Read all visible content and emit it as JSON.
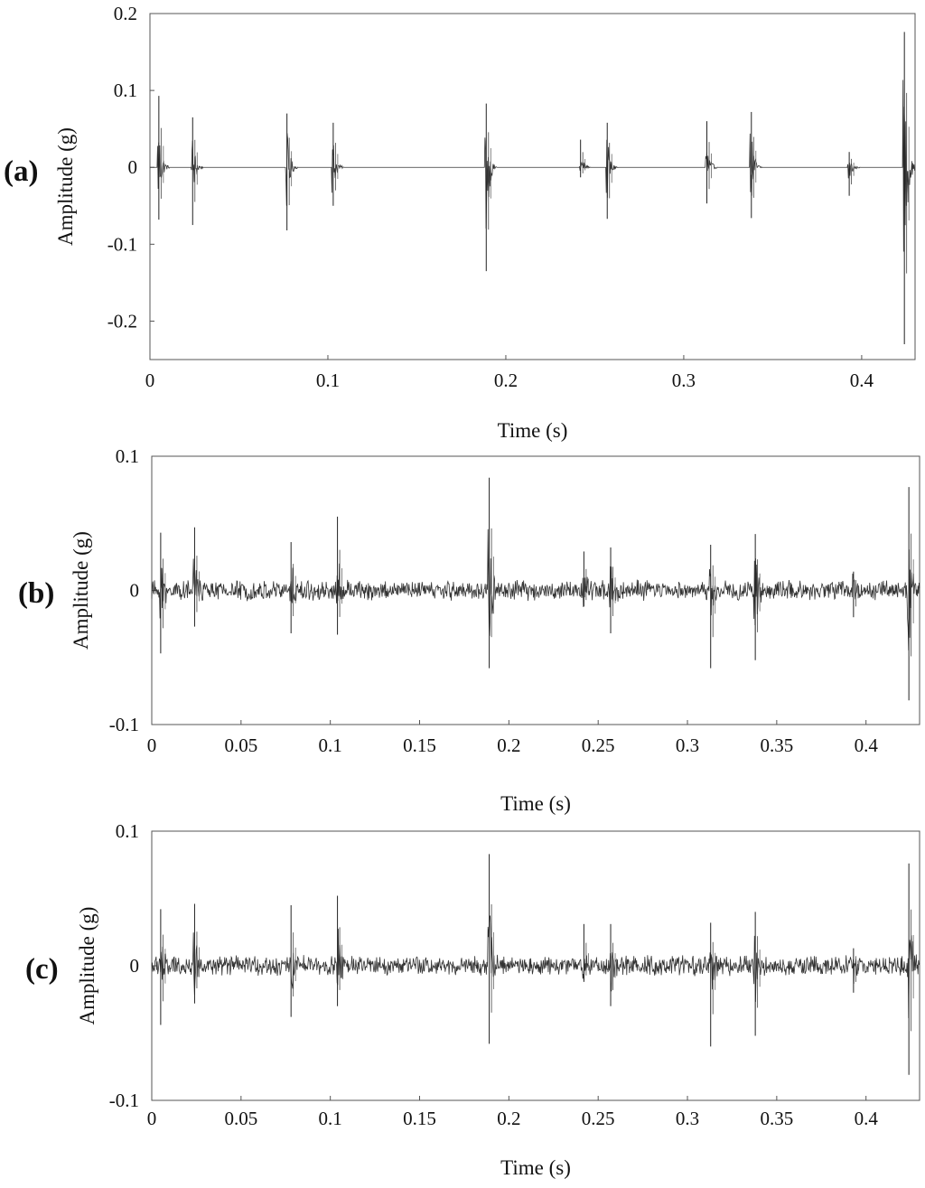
{
  "chart_data": [
    {
      "type": "line",
      "panel_label": "(a)",
      "xlabel": "Time (s)",
      "ylabel": "Amplitude (g)",
      "xlim": [
        0,
        0.43
      ],
      "ylim": [
        -0.25,
        0.2
      ],
      "xticks": [
        0,
        0.1,
        0.2,
        0.3,
        0.4
      ],
      "xtick_labels": [
        "0",
        "0.1",
        "0.2",
        "0.3",
        "0.4"
      ],
      "yticks": [
        0.2,
        0.1,
        0,
        -0.1,
        -0.2
      ],
      "ytick_labels": [
        "0.2",
        "0.1",
        "0",
        "-0.1",
        "-0.2"
      ],
      "grid": false,
      "baseline_noise": 0.0,
      "series": [
        {
          "color": "#000000",
          "impulses": [
            {
              "t": 0.005,
              "max": 0.093,
              "min": -0.068
            },
            {
              "t": 0.024,
              "max": 0.065,
              "min": -0.075
            },
            {
              "t": 0.077,
              "max": 0.07,
              "min": -0.082
            },
            {
              "t": 0.103,
              "max": 0.058,
              "min": -0.05
            },
            {
              "t": 0.189,
              "max": 0.083,
              "min": -0.135
            },
            {
              "t": 0.242,
              "max": 0.036,
              "min": -0.013
            },
            {
              "t": 0.257,
              "max": 0.058,
              "min": -0.067
            },
            {
              "t": 0.313,
              "max": 0.06,
              "min": -0.047
            },
            {
              "t": 0.338,
              "max": 0.072,
              "min": -0.066
            },
            {
              "t": 0.393,
              "max": 0.02,
              "min": -0.037
            },
            {
              "t": 0.424,
              "max": 0.176,
              "min": -0.23
            }
          ]
        }
      ]
    },
    {
      "type": "line",
      "panel_label": "(b)",
      "xlabel": "Time (s)",
      "ylabel": "Amplitude (g)",
      "xlim": [
        0,
        0.43
      ],
      "ylim": [
        -0.1,
        0.1
      ],
      "xticks": [
        0,
        0.05,
        0.1,
        0.15,
        0.2,
        0.25,
        0.3,
        0.35,
        0.4
      ],
      "xtick_labels": [
        "0",
        "0.05",
        "0.1",
        "0.15",
        "0.2",
        "0.25",
        "0.3",
        "0.35",
        "0.4"
      ],
      "yticks": [
        0.1,
        0,
        -0.1
      ],
      "ytick_labels": [
        "0.1",
        "0",
        "-0.1"
      ],
      "grid": false,
      "baseline_noise": 0.006,
      "series": [
        {
          "color": "#000000",
          "impulses": [
            {
              "t": 0.005,
              "max": 0.043,
              "min": -0.047
            },
            {
              "t": 0.024,
              "max": 0.047,
              "min": -0.027
            },
            {
              "t": 0.078,
              "max": 0.036,
              "min": -0.032
            },
            {
              "t": 0.104,
              "max": 0.055,
              "min": -0.033
            },
            {
              "t": 0.189,
              "max": 0.084,
              "min": -0.058
            },
            {
              "t": 0.242,
              "max": 0.029,
              "min": -0.012
            },
            {
              "t": 0.257,
              "max": 0.032,
              "min": -0.032
            },
            {
              "t": 0.313,
              "max": 0.034,
              "min": -0.058
            },
            {
              "t": 0.338,
              "max": 0.042,
              "min": -0.052
            },
            {
              "t": 0.393,
              "max": 0.014,
              "min": -0.02
            },
            {
              "t": 0.424,
              "max": 0.077,
              "min": -0.082
            }
          ]
        }
      ]
    },
    {
      "type": "line",
      "panel_label": "(c)",
      "xlabel": "Time (s)",
      "ylabel": "Amplitude (g)",
      "xlim": [
        0,
        0.43
      ],
      "ylim": [
        -0.1,
        0.1
      ],
      "xticks": [
        0,
        0.05,
        0.1,
        0.15,
        0.2,
        0.25,
        0.3,
        0.35,
        0.4
      ],
      "xtick_labels": [
        "0",
        "0.05",
        "0.1",
        "0.15",
        "0.2",
        "0.25",
        "0.3",
        "0.35",
        "0.4"
      ],
      "yticks": [
        0.1,
        0,
        -0.1
      ],
      "ytick_labels": [
        "0.1",
        "0",
        "-0.1"
      ],
      "grid": false,
      "baseline_noise": 0.006,
      "series": [
        {
          "color": "#000000",
          "impulses": [
            {
              "t": 0.005,
              "max": 0.042,
              "min": -0.044
            },
            {
              "t": 0.024,
              "max": 0.046,
              "min": -0.028
            },
            {
              "t": 0.078,
              "max": 0.045,
              "min": -0.038
            },
            {
              "t": 0.104,
              "max": 0.052,
              "min": -0.03
            },
            {
              "t": 0.189,
              "max": 0.083,
              "min": -0.058
            },
            {
              "t": 0.242,
              "max": 0.031,
              "min": -0.012
            },
            {
              "t": 0.257,
              "max": 0.031,
              "min": -0.03
            },
            {
              "t": 0.313,
              "max": 0.032,
              "min": -0.06
            },
            {
              "t": 0.338,
              "max": 0.04,
              "min": -0.052
            },
            {
              "t": 0.393,
              "max": 0.013,
              "min": -0.02
            },
            {
              "t": 0.424,
              "max": 0.076,
              "min": -0.081
            }
          ]
        }
      ]
    }
  ]
}
